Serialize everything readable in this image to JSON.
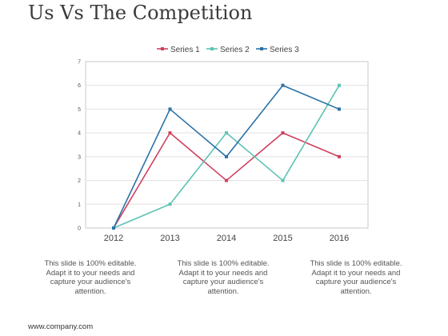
{
  "title": "Us Vs The Competition",
  "chart_data": {
    "type": "line",
    "x": [
      "2012",
      "2013",
      "2014",
      "2015",
      "2016"
    ],
    "y_ticks": [
      "0",
      "1",
      "2",
      "3",
      "4",
      "5",
      "6",
      "7"
    ],
    "ylim": [
      0,
      7
    ],
    "grid": true,
    "legend_position": "top",
    "series": [
      {
        "name": "Series 1",
        "color": "#d0405e",
        "values": [
          0,
          4,
          2,
          4,
          3
        ]
      },
      {
        "name": "Series 2",
        "color": "#5cc3b4",
        "values": [
          0,
          1,
          4,
          2,
          6
        ]
      },
      {
        "name": "Series 3",
        "color": "#2a72a8",
        "values": [
          0,
          5,
          3,
          6,
          5
        ]
      }
    ]
  },
  "captions": [
    "This slide is 100% editable. Adapt it to your needs and capture your audience's attention.",
    "This slide is 100% editable. Adapt it to your needs and capture your audience's attention.",
    "This slide is 100% editable. Adapt it to your needs and capture your audience's attention."
  ],
  "footer": "www.company.com"
}
